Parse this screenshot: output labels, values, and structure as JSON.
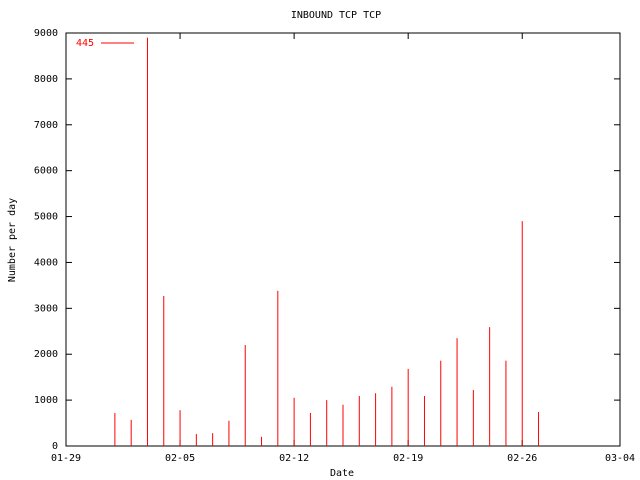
{
  "chart_data": {
    "type": "impulse",
    "title": "INBOUND TCP TCP",
    "x_label": "Date",
    "y_label": "Number per day",
    "x": [
      "02-01",
      "02-02",
      "02-03",
      "02-04",
      "02-05",
      "02-06",
      "02-07",
      "02-08",
      "02-09",
      "02-10",
      "02-11",
      "02-12",
      "02-13",
      "02-14",
      "02-15",
      "02-16",
      "02-17",
      "02-18",
      "02-19",
      "02-20",
      "02-21",
      "02-22",
      "02-23",
      "02-24",
      "02-25",
      "02-26",
      "02-27"
    ],
    "series": [
      {
        "name": "445",
        "color": "#ff0000",
        "values": [
          720,
          570,
          8900,
          3270,
          780,
          260,
          280,
          550,
          2200,
          200,
          3380,
          1050,
          720,
          1000,
          900,
          1090,
          1150,
          1290,
          1680,
          1090,
          1860,
          2350,
          1220,
          2590,
          1860,
          4900,
          740
        ]
      }
    ],
    "xlim": [
      "01-29",
      "03-04"
    ],
    "xticks": [
      "01-29",
      "02-05",
      "02-12",
      "02-19",
      "02-26",
      "03-04"
    ],
    "ylim": [
      0,
      9000
    ],
    "yticks": [
      0,
      1000,
      2000,
      3000,
      4000,
      5000,
      6000,
      7000,
      8000,
      9000
    ],
    "legend": "top-left"
  }
}
